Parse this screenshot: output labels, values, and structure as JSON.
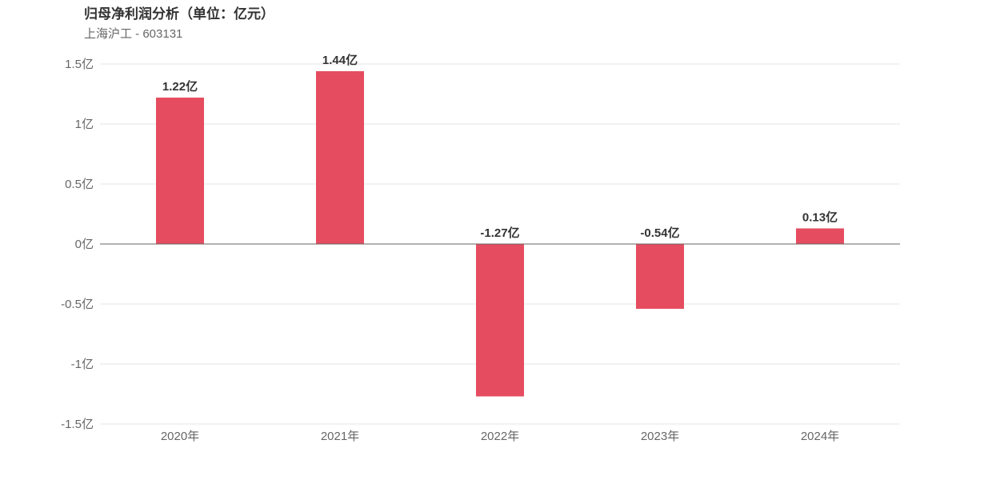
{
  "chart_data": {
    "type": "bar",
    "title": "归母净利润分析（单位：亿元）",
    "subtitle": "上海沪工 - 603131",
    "categories": [
      "2020年",
      "2021年",
      "2022年",
      "2023年",
      "2024年"
    ],
    "values": [
      1.22,
      1.44,
      -1.27,
      -0.54,
      0.13
    ],
    "data_labels": [
      "1.22亿",
      "1.44亿",
      "-1.27亿",
      "-0.54亿",
      "0.13亿"
    ],
    "y_ticks": [
      1.5,
      1,
      0.5,
      0,
      -0.5,
      -1,
      -1.5
    ],
    "y_tick_labels": [
      "1.5亿",
      "1亿",
      "0.5亿",
      "0亿",
      "-0.5亿",
      "-1亿",
      "-1.5亿"
    ],
    "ylim": [
      -1.5,
      1.5
    ],
    "grid": true,
    "legend": "none",
    "colors": {
      "bar": "#e64c5f",
      "grid": "#e6e6e6",
      "zero_line": "#666666"
    }
  }
}
